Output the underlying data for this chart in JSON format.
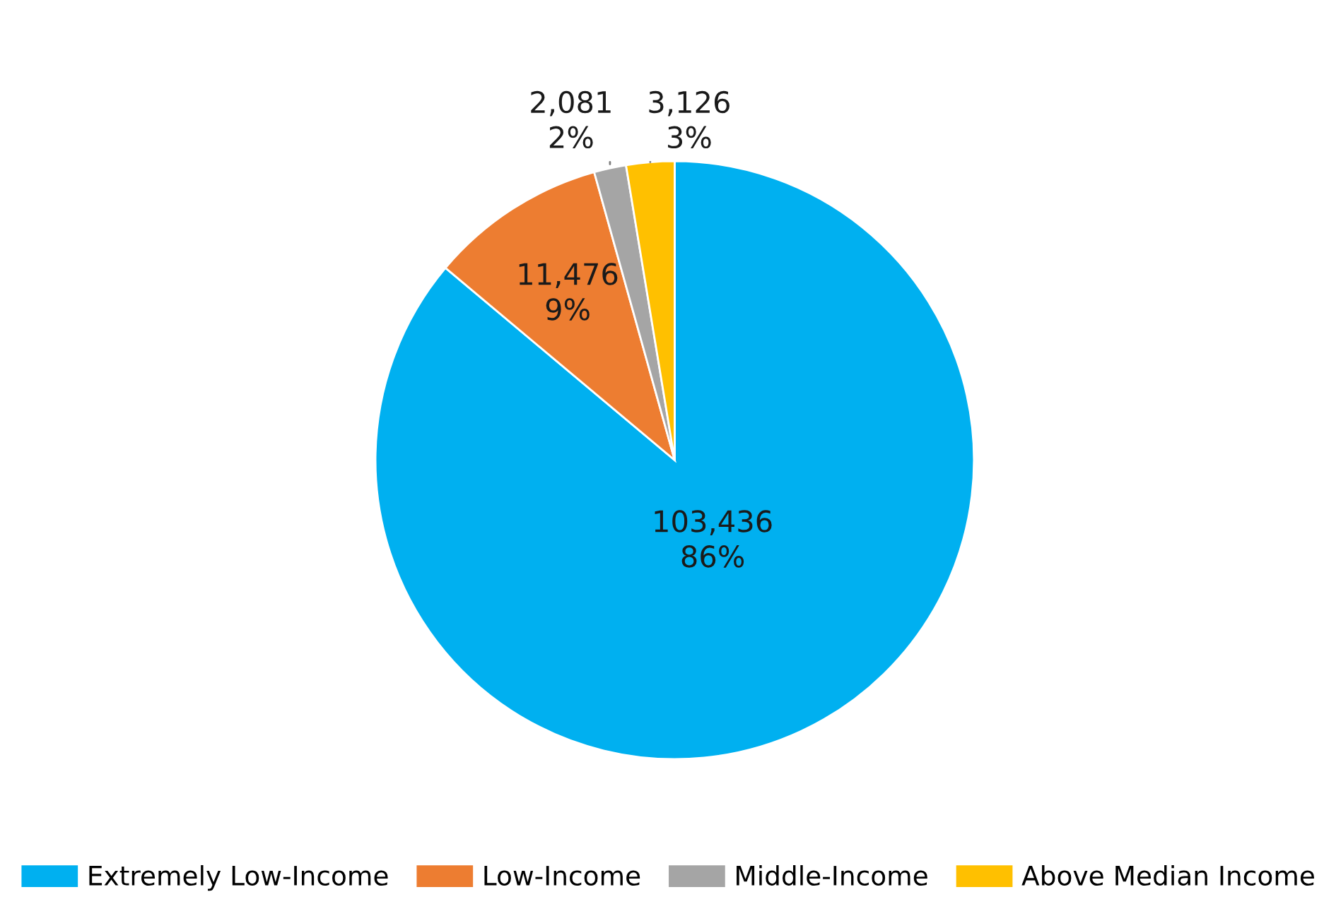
{
  "chart_data": {
    "type": "pie",
    "categories": [
      "Extremely Low-Income",
      "Low-Income",
      "Middle-Income",
      "Above Median Income"
    ],
    "values": [
      103436,
      11476,
      2081,
      3126
    ],
    "colors": [
      "#00b0f0",
      "#ed7d31",
      "#a5a5a5",
      "#ffc000"
    ],
    "value_labels": [
      "103,436\n86%",
      "11,476\n9%",
      "2,081\n2%",
      "3,126\n3%"
    ],
    "legend": "bottom"
  }
}
